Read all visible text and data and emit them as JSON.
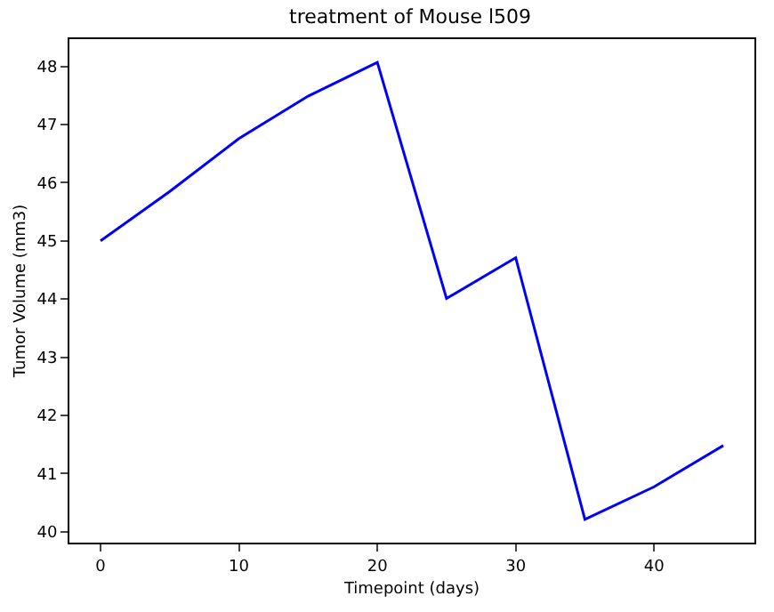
{
  "chart_data": {
    "type": "line",
    "title": "treatment of Mouse l509",
    "xlabel": "Timepoint (days)",
    "ylabel": "Tumor Volume (mm3)",
    "x": [
      0,
      5,
      10,
      15,
      20,
      25,
      30,
      35,
      40,
      45
    ],
    "series": [
      {
        "color": "#0000ff",
        "values": [
          45.0,
          45.85,
          46.76,
          47.49,
          48.07,
          44.01,
          44.71,
          40.21,
          40.77,
          41.48
        ]
      }
    ],
    "xlim": [
      -2.25,
      47.25
    ],
    "xticks": [
      0,
      10,
      20,
      30,
      40
    ],
    "ylim": [
      39.81,
      48.47
    ],
    "yticks": [
      40,
      41,
      42,
      43,
      44,
      45,
      46,
      47,
      48
    ],
    "marker": "none",
    "line_style": "solid"
  }
}
